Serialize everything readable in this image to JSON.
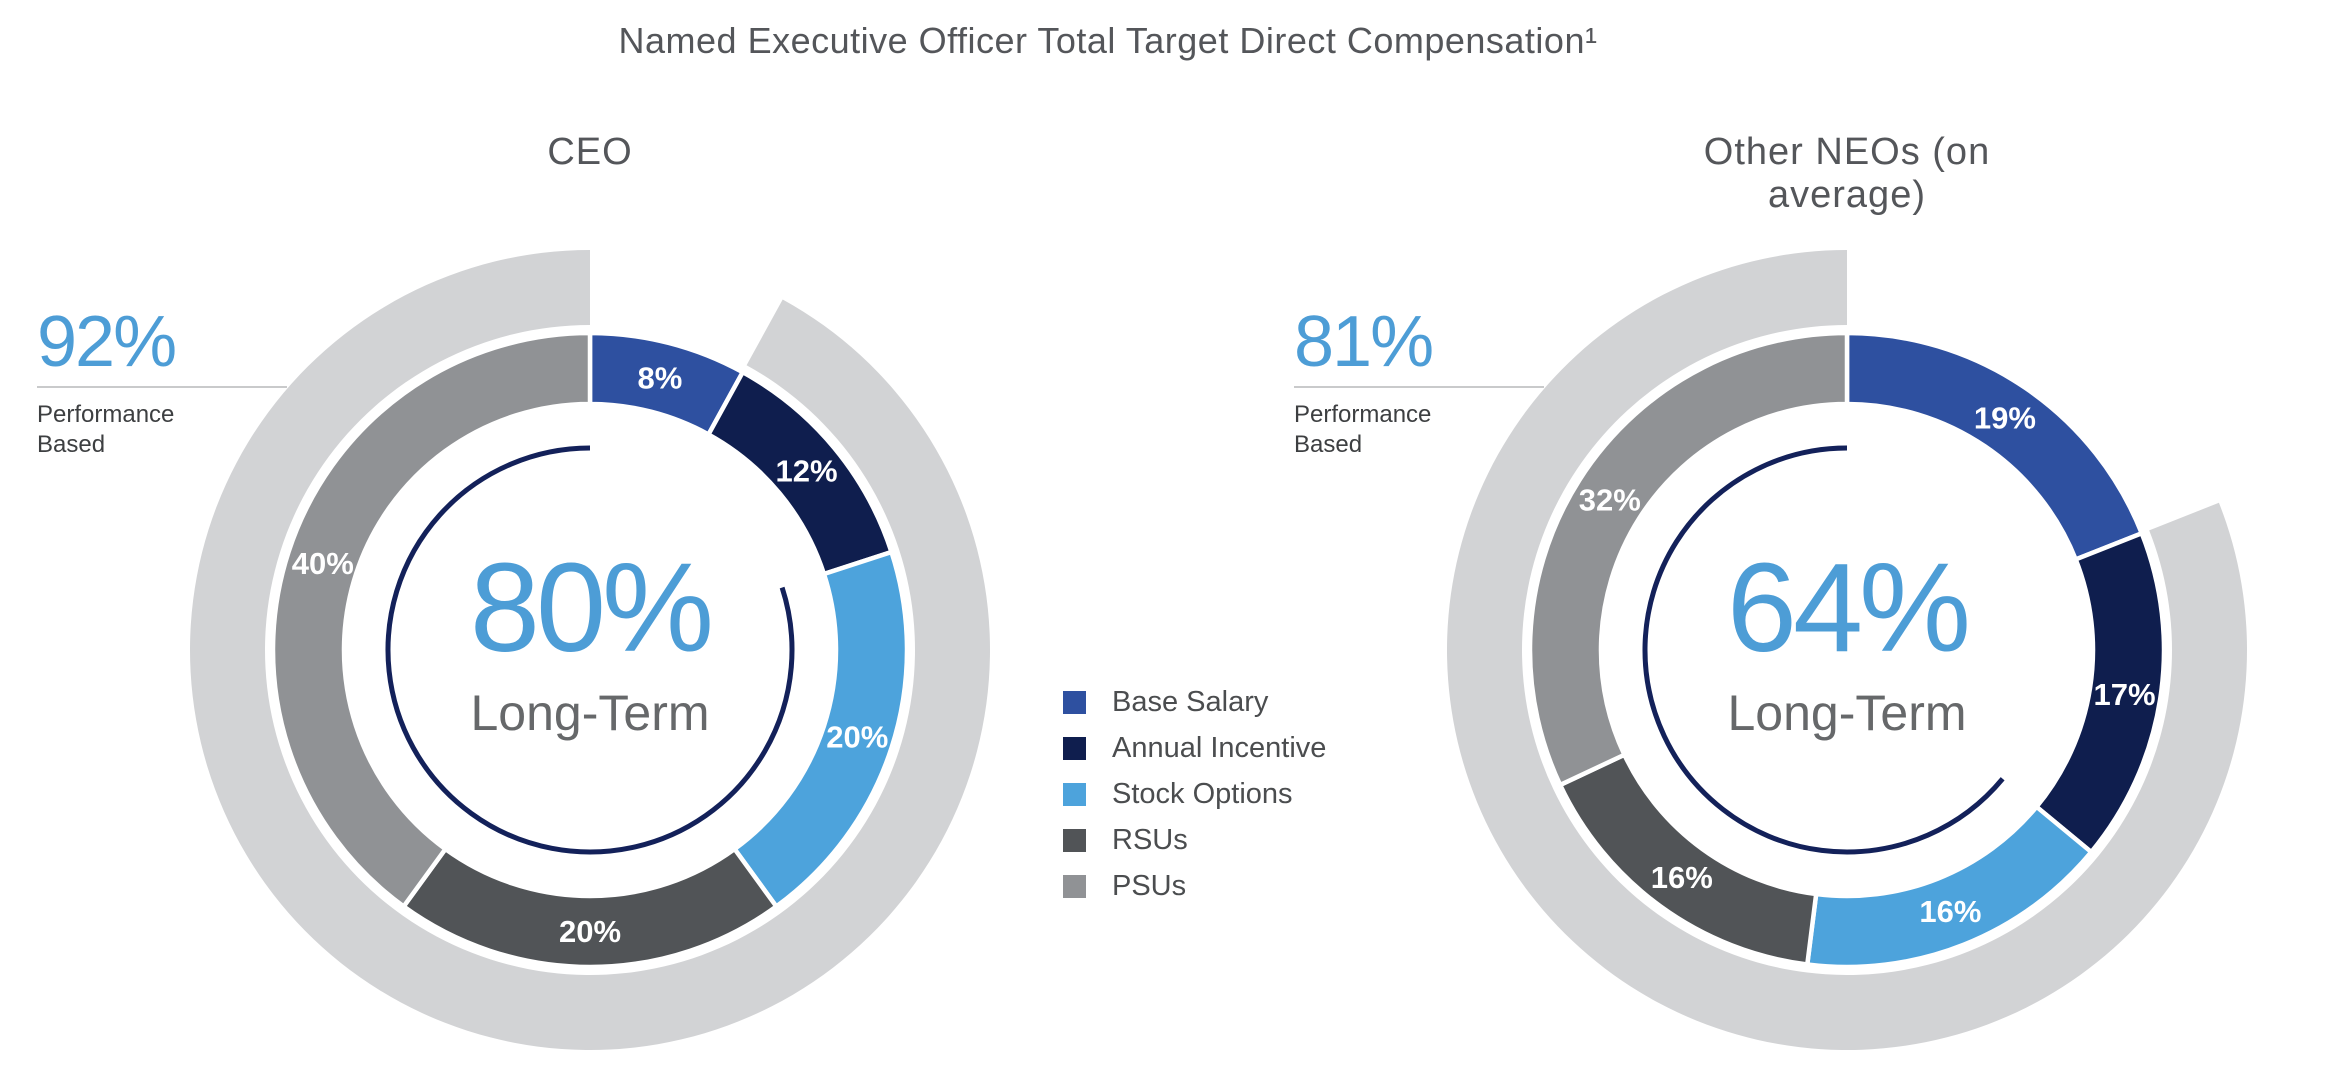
{
  "page": {
    "title": "Named Executive Officer Total Target Direct Compensation¹",
    "background": "#ffffff",
    "accent_blue": "#4d9dd6"
  },
  "legend": {
    "position": "center-between-charts",
    "items": [
      {
        "label": "Base Salary",
        "color": "#2e50a0"
      },
      {
        "label": "Annual Incentive",
        "color": "#0f1e4e"
      },
      {
        "label": "Stock Options",
        "color": "#4da3dc"
      },
      {
        "label": "RSUs",
        "color": "#515457"
      },
      {
        "label": "PSUs",
        "color": "#909295"
      }
    ]
  },
  "chart_data": [
    {
      "type": "donut",
      "title": "CEO",
      "categories": [
        "Base Salary",
        "Annual Incentive",
        "Stock Options",
        "RSUs",
        "PSUs"
      ],
      "values": [
        8,
        12,
        20,
        20,
        40
      ],
      "labels": [
        "8%",
        "12%",
        "20%",
        "20%",
        "40%"
      ],
      "colors": [
        "#2e50a0",
        "#0f1e4e",
        "#4da3dc",
        "#515457",
        "#909295"
      ],
      "outer_ring": {
        "value": 92,
        "label": "92%",
        "sublabel": "Performance\nBased",
        "color": "#d2d3d5",
        "start_percent": 8
      },
      "inner_arc": {
        "value": 80,
        "start_percent": 20,
        "color": "#13215a"
      },
      "center": {
        "value_label": "80%",
        "caption": "Long-Term"
      }
    },
    {
      "type": "donut",
      "title": "Other NEOs (on average)",
      "categories": [
        "Base Salary",
        "Annual Incentive",
        "Stock Options",
        "RSUs",
        "PSUs"
      ],
      "values": [
        19,
        17,
        16,
        16,
        32
      ],
      "labels": [
        "19%",
        "17%",
        "16%",
        "16%",
        "32%"
      ],
      "colors": [
        "#2e50a0",
        "#0f1e4e",
        "#4da3dc",
        "#515457",
        "#909295"
      ],
      "outer_ring": {
        "value": 81,
        "label": "81%",
        "sublabel": "Performance\nBased",
        "color": "#d2d3d5",
        "start_percent": 19
      },
      "inner_arc": {
        "value": 64,
        "start_percent": 36,
        "color": "#13215a"
      },
      "center": {
        "value_label": "64%",
        "caption": "Long-Term"
      }
    }
  ]
}
